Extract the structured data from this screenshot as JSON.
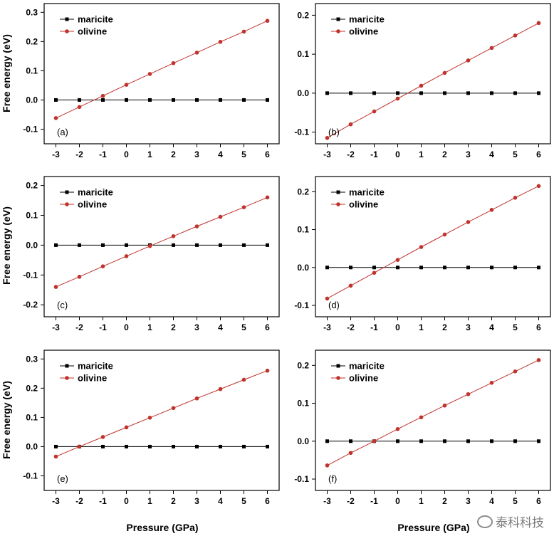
{
  "figure": {
    "ylabel": "Free energy (eV)",
    "xlabel": "Pressure (GPa)",
    "watermark": "泰科科技",
    "series_colors": {
      "maricite": "#000000",
      "olivine": "#c0322b"
    }
  },
  "chart_data": [
    {
      "type": "line",
      "panel": "(a)",
      "x": [
        -3,
        -2,
        -1,
        0,
        1,
        2,
        3,
        4,
        5,
        6
      ],
      "series": [
        {
          "name": "maricite",
          "values": [
            0,
            0,
            0,
            0,
            0,
            0,
            0,
            0,
            0,
            0
          ]
        },
        {
          "name": "olivine",
          "values": [
            -0.062,
            -0.024,
            0.014,
            0.052,
            0.089,
            0.126,
            0.162,
            0.199,
            0.234,
            0.271
          ]
        }
      ],
      "ylim": [
        -0.15,
        0.33
      ],
      "yticks": [
        -0.1,
        0.0,
        0.1,
        0.2,
        0.3
      ],
      "xticks": [
        -3,
        -2,
        -1,
        0,
        1,
        2,
        3,
        4,
        5,
        6
      ],
      "legend": "top-left",
      "grid": false
    },
    {
      "type": "line",
      "panel": "(b)",
      "x": [
        -3,
        -2,
        -1,
        0,
        1,
        2,
        3,
        4,
        5,
        6
      ],
      "series": [
        {
          "name": "maricite",
          "values": [
            0,
            0,
            0,
            0,
            0,
            0,
            0,
            0,
            0,
            0
          ]
        },
        {
          "name": "olivine",
          "values": [
            -0.115,
            -0.08,
            -0.047,
            -0.014,
            0.019,
            0.052,
            0.084,
            0.116,
            0.148,
            0.18
          ]
        }
      ],
      "ylim": [
        -0.13,
        0.23
      ],
      "yticks": [
        -0.1,
        0.0,
        0.1,
        0.2
      ],
      "xticks": [
        -3,
        -2,
        -1,
        0,
        1,
        2,
        3,
        4,
        5,
        6
      ],
      "legend": "top-left",
      "grid": false
    },
    {
      "type": "line",
      "panel": "(c)",
      "x": [
        -3,
        -2,
        -1,
        0,
        1,
        2,
        3,
        4,
        5,
        6
      ],
      "series": [
        {
          "name": "maricite",
          "values": [
            0,
            0,
            0,
            0,
            0,
            0,
            0,
            0,
            0,
            0
          ]
        },
        {
          "name": "olivine",
          "values": [
            -0.14,
            -0.106,
            -0.071,
            -0.037,
            -0.003,
            0.03,
            0.063,
            0.095,
            0.127,
            0.16
          ]
        }
      ],
      "ylim": [
        -0.24,
        0.23
      ],
      "yticks": [
        -0.2,
        -0.1,
        0.0,
        0.1,
        0.2
      ],
      "xticks": [
        -3,
        -2,
        -1,
        0,
        1,
        2,
        3,
        4,
        5,
        6
      ],
      "legend": "top-left",
      "grid": false
    },
    {
      "type": "line",
      "panel": "(d)",
      "x": [
        -3,
        -2,
        -1,
        0,
        1,
        2,
        3,
        4,
        5,
        6
      ],
      "series": [
        {
          "name": "maricite",
          "values": [
            0,
            0,
            0,
            0,
            0,
            0,
            0,
            0,
            0,
            0
          ]
        },
        {
          "name": "olivine",
          "values": [
            -0.082,
            -0.048,
            -0.014,
            0.02,
            0.054,
            0.087,
            0.12,
            0.152,
            0.184,
            0.215
          ]
        }
      ],
      "ylim": [
        -0.13,
        0.24
      ],
      "yticks": [
        -0.1,
        0.0,
        0.1,
        0.2
      ],
      "xticks": [
        -3,
        -2,
        -1,
        0,
        1,
        2,
        3,
        4,
        5,
        6
      ],
      "legend": "top-left",
      "grid": false
    },
    {
      "type": "line",
      "panel": "(e)",
      "x": [
        -3,
        -2,
        -1,
        0,
        1,
        2,
        3,
        4,
        5,
        6
      ],
      "series": [
        {
          "name": "maricite",
          "values": [
            0,
            0,
            0,
            0,
            0,
            0,
            0,
            0,
            0,
            0
          ]
        },
        {
          "name": "olivine",
          "values": [
            -0.034,
            0.0,
            0.033,
            0.066,
            0.099,
            0.132,
            0.165,
            0.197,
            0.229,
            0.26
          ]
        }
      ],
      "ylim": [
        -0.15,
        0.33
      ],
      "yticks": [
        -0.1,
        0.0,
        0.1,
        0.2,
        0.3
      ],
      "xticks": [
        -3,
        -2,
        -1,
        0,
        1,
        2,
        3,
        4,
        5,
        6
      ],
      "legend": "top-left",
      "grid": false
    },
    {
      "type": "line",
      "panel": "(f)",
      "x": [
        -3,
        -2,
        -1,
        0,
        1,
        2,
        3,
        4,
        5,
        6
      ],
      "series": [
        {
          "name": "maricite",
          "values": [
            0,
            0,
            0,
            0,
            0,
            0,
            0,
            0,
            0,
            0
          ]
        },
        {
          "name": "olivine",
          "values": [
            -0.064,
            -0.031,
            0.0,
            0.032,
            0.063,
            0.094,
            0.124,
            0.154,
            0.184,
            0.214
          ]
        }
      ],
      "ylim": [
        -0.13,
        0.24
      ],
      "yticks": [
        -0.1,
        0.0,
        0.1,
        0.2
      ],
      "xticks": [
        -3,
        -2,
        -1,
        0,
        1,
        2,
        3,
        4,
        5,
        6
      ],
      "legend": "top-left",
      "grid": false
    }
  ]
}
